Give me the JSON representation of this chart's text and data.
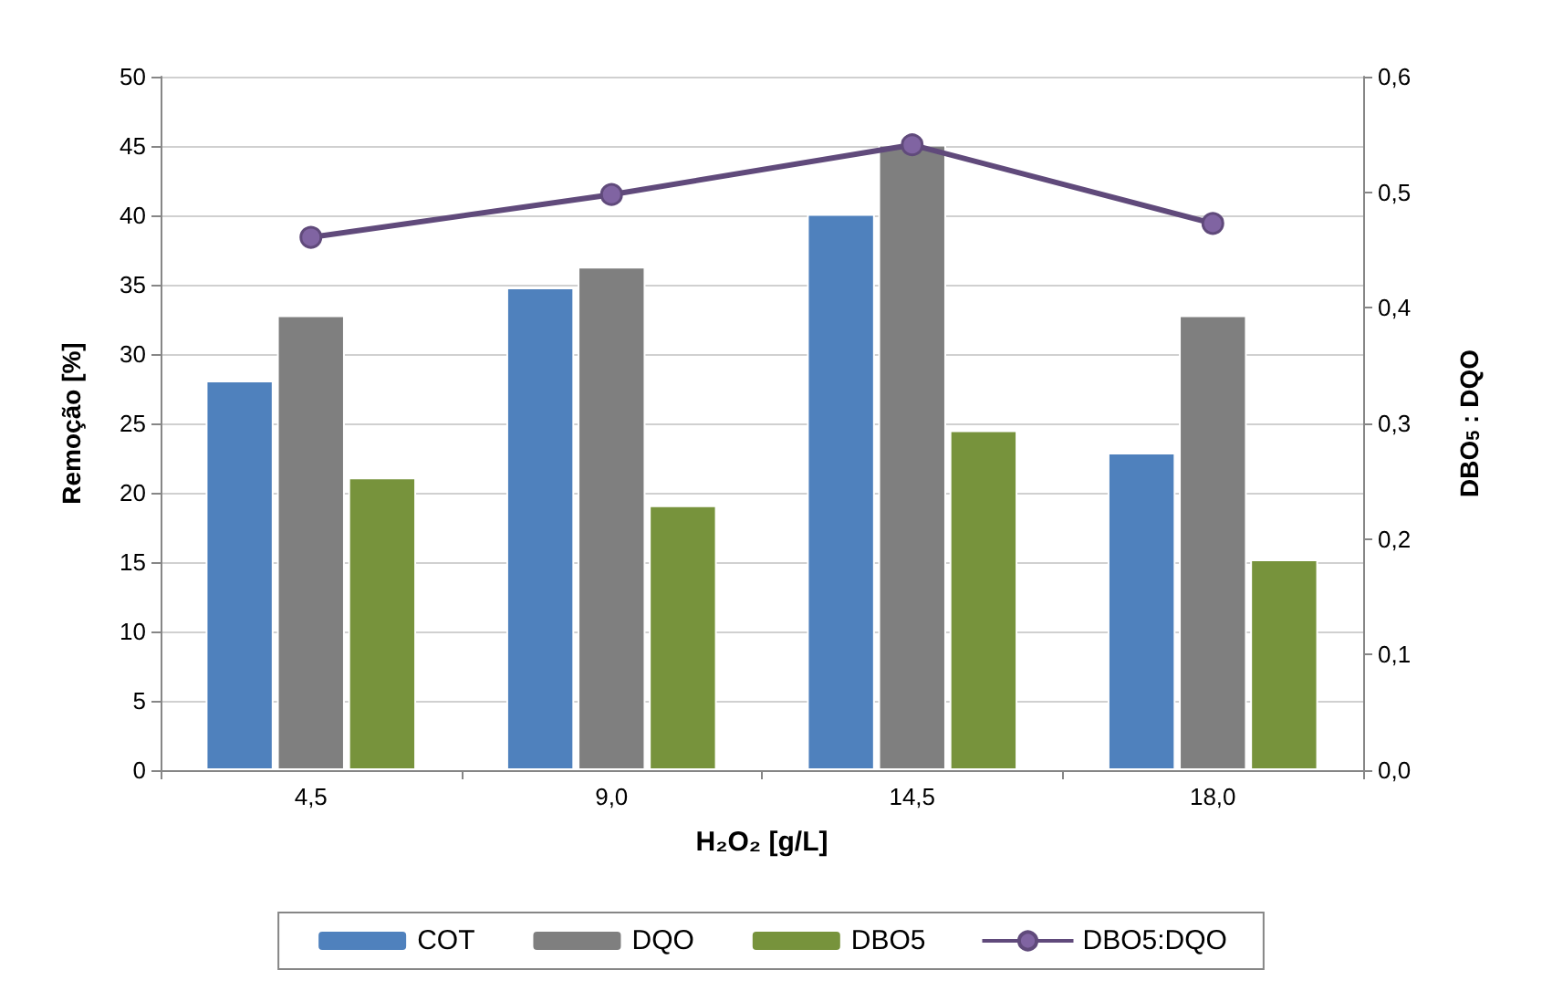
{
  "chart_data": {
    "type": "bar",
    "xlabel": "H₂O₂ [g/L]",
    "ylabel": "Remoção [%]",
    "y2label": "DBO$_{5}$ : DQO",
    "categories": [
      "4,5",
      "9,0",
      "14,5",
      "18,0"
    ],
    "series": [
      {
        "name": "COT",
        "color": "#4f81bd",
        "values": [
          28.1,
          34.8,
          40.1,
          22.9
        ]
      },
      {
        "name": "DQO",
        "color": "#7f7f7f",
        "values": [
          32.8,
          36.3,
          45.1,
          32.8
        ]
      },
      {
        "name": "DBO5",
        "color": "#77933c",
        "values": [
          21.1,
          19.1,
          24.5,
          15.2
        ]
      },
      {
        "name": "DBO5:DQO",
        "type": "line",
        "axis": "y2",
        "color": "#604a7b",
        "values": [
          0.461,
          0.498,
          0.541,
          0.473
        ]
      }
    ],
    "ylim": [
      0,
      50
    ],
    "yticks": [
      0,
      5,
      10,
      15,
      20,
      25,
      30,
      35,
      40,
      45,
      50
    ],
    "y2lim": [
      0,
      0.6
    ],
    "y2ticks": [
      {
        "value": 0,
        "label": "0,0"
      },
      {
        "value": 0.1,
        "label": "0,1"
      },
      {
        "value": 0.2,
        "label": "0,2"
      },
      {
        "value": 0.3,
        "label": "0,3"
      },
      {
        "value": 0.4,
        "label": "0,4"
      },
      {
        "value": 0.5,
        "label": "0,5"
      },
      {
        "value": 0.6,
        "label": "0,6"
      }
    ],
    "grid": "y",
    "legend": "bottom",
    "marker": "circle"
  }
}
